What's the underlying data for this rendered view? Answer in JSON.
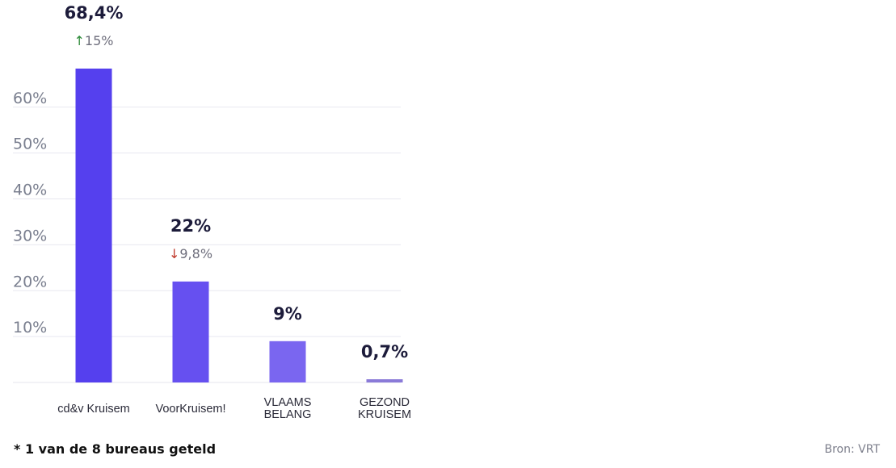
{
  "chart_data": {
    "type": "bar",
    "categories": [
      "cd&v Kruisem",
      "VoorKruisem!",
      "VLAAMS BELANG",
      "GEZOND KRUISEM"
    ],
    "category_lines": [
      [
        "cd&v Kruisem"
      ],
      [
        "VoorKruisem!"
      ],
      [
        "VLAAMS",
        "BELANG"
      ],
      [
        "GEZOND",
        "KRUISEM"
      ]
    ],
    "values": [
      68.4,
      22,
      9,
      0.7
    ],
    "value_labels": [
      "68,4%",
      "22%",
      "9%",
      "0,7%"
    ],
    "changes": [
      {
        "direction": "up",
        "arrow": "↑",
        "label": "15%"
      },
      {
        "direction": "down",
        "arrow": "↓",
        "label": "9,8%"
      },
      null,
      null
    ],
    "bar_colors": [
      "#5540ee",
      "#6650f0",
      "#7a66f0",
      "#8a7ad8"
    ],
    "change_colors": {
      "up": "#2e8b3a",
      "down": "#c0392b"
    },
    "y_ticks": [
      10,
      20,
      30,
      40,
      50,
      60
    ],
    "y_tick_labels": [
      "10%",
      "20%",
      "30%",
      "40%",
      "50%",
      "60%"
    ],
    "ylim": [
      0,
      68.4
    ],
    "grid": true,
    "title": "",
    "xlabel": "",
    "ylabel": ""
  },
  "footer": {
    "note": "* 1 van de 8 bureaus geteld",
    "source": "Bron: VRT"
  }
}
